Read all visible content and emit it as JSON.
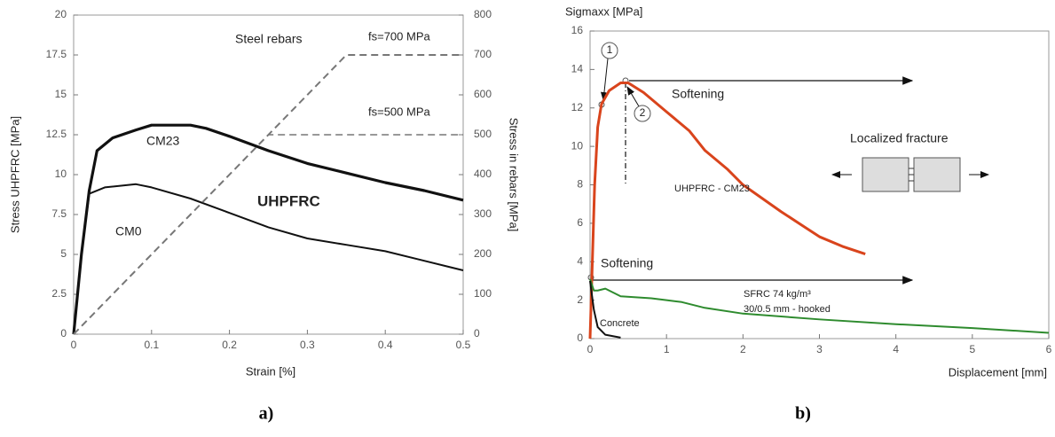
{
  "chart_data": [
    {
      "type": "line",
      "caption": "a)",
      "xlabel": "Strain [%]",
      "ylabel": "Stress UHPFRC [MPa]",
      "y2label": "Stress in rebars [MPa]",
      "xlim": [
        0,
        0.5
      ],
      "xticks": [
        0,
        0.1,
        0.2,
        0.3,
        0.4,
        0.5
      ],
      "ylim": [
        0,
        20
      ],
      "yticks": [
        0,
        2.5,
        5,
        7.5,
        10,
        12.5,
        15,
        17.5,
        20
      ],
      "y2lim": [
        0,
        800
      ],
      "y2ticks": [
        0,
        100,
        200,
        300,
        400,
        500,
        600,
        700,
        800
      ],
      "grid": false,
      "series": [
        {
          "name": "CM23",
          "color": "#111111",
          "line_width": 3.2,
          "x": [
            0,
            0.01,
            0.02,
            0.03,
            0.05,
            0.08,
            0.1,
            0.15,
            0.17,
            0.2,
            0.25,
            0.3,
            0.35,
            0.4,
            0.45,
            0.5
          ],
          "values": [
            0,
            5,
            9,
            11.5,
            12.3,
            12.8,
            13.1,
            13.1,
            12.9,
            12.4,
            11.5,
            10.7,
            10.1,
            9.5,
            9.0,
            8.4
          ]
        },
        {
          "name": "CM0",
          "color": "#111111",
          "line_width": 2,
          "x": [
            0,
            0.01,
            0.02,
            0.04,
            0.08,
            0.1,
            0.15,
            0.2,
            0.25,
            0.3,
            0.35,
            0.4,
            0.45,
            0.5
          ],
          "values": [
            0,
            5,
            8.8,
            9.2,
            9.4,
            9.2,
            8.5,
            7.6,
            6.7,
            6.0,
            5.6,
            5.2,
            4.6,
            4.0
          ]
        },
        {
          "name": "fs=700 MPa",
          "color": "#777777",
          "line_width": 2,
          "dash": true,
          "axis": "y2",
          "x": [
            0,
            0.35,
            0.5
          ],
          "values": [
            0,
            700,
            700
          ]
        },
        {
          "name": "fs=500 MPa",
          "color": "#777777",
          "line_width": 1.5,
          "dash": true,
          "axis": "y2",
          "x": [
            0,
            0.25,
            0.5
          ],
          "values": [
            0,
            500,
            500
          ]
        }
      ],
      "annotations": [
        "Steel rebars",
        "UHPFRC"
      ]
    },
    {
      "type": "line",
      "caption": "b)",
      "xlabel": "Displacement [mm]",
      "ylabel": "Sigmaxx [MPa]",
      "xlim": [
        0,
        6
      ],
      "xticks": [
        0,
        1,
        2,
        3,
        4,
        5,
        6
      ],
      "ylim": [
        0,
        16
      ],
      "yticks": [
        0,
        2,
        4,
        6,
        8,
        10,
        12,
        14,
        16
      ],
      "grid": false,
      "series": [
        {
          "name": "UHPFRC - CM23",
          "color": "#d9441c",
          "line_width": 3,
          "x": [
            0,
            0.03,
            0.06,
            0.1,
            0.15,
            0.25,
            0.4,
            0.5,
            0.7,
            1,
            1.3,
            1.5,
            1.8,
            2,
            2.5,
            3,
            3.3,
            3.6
          ],
          "values": [
            0,
            4,
            8,
            11,
            12.2,
            12.9,
            13.3,
            13.3,
            12.8,
            11.8,
            10.8,
            9.8,
            8.8,
            8,
            6.6,
            5.3,
            4.8,
            4.4
          ]
        },
        {
          "name": "SFRC 74 kg/m³",
          "color": "#2e8b2e",
          "line_width": 2,
          "x": [
            0,
            0.05,
            0.1,
            0.2,
            0.4,
            0.8,
            1,
            1.2,
            1.5,
            2,
            3,
            4,
            5,
            6
          ],
          "values": [
            3.1,
            2.5,
            2.5,
            2.6,
            2.2,
            2.1,
            2.0,
            1.9,
            1.6,
            1.3,
            1.0,
            0.75,
            0.55,
            0.3
          ]
        },
        {
          "name": "Concrete",
          "color": "#111111",
          "line_width": 2,
          "x": [
            0,
            0.05,
            0.1,
            0.2,
            0.4
          ],
          "values": [
            3,
            1.5,
            0.6,
            0.2,
            0.05
          ]
        }
      ],
      "annotations": [
        "Softening",
        "Softening",
        "Localized fracture",
        "30/0.5 mm - hooked",
        "1",
        "2"
      ]
    }
  ]
}
